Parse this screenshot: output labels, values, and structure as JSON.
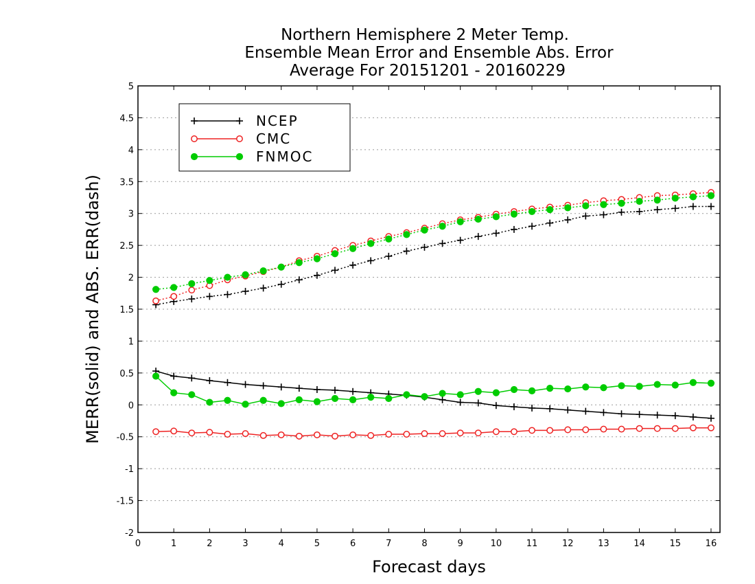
{
  "chart_data": {
    "type": "line",
    "title_lines": [
      "Northern Hemisphere 2 Meter Temp.",
      "Ensemble Mean Error and Ensemble Abs. Error",
      "Average For 20151201 - 20160229"
    ],
    "xlabel": "Forecast days",
    "ylabel": "MERR(solid) and ABS. ERR(dash)",
    "xlim": [
      0,
      16.25
    ],
    "ylim": [
      -2,
      5
    ],
    "xticks": [
      "0",
      "1",
      "2",
      "3",
      "4",
      "5",
      "6",
      "7",
      "8",
      "9",
      "10",
      "11",
      "12",
      "13",
      "14",
      "15",
      "16"
    ],
    "yticks": [
      "-2",
      "-1.5",
      "-1",
      "-0.5",
      "0",
      "0.5",
      "1",
      "1.5",
      "2",
      "2.5",
      "3",
      "3.5",
      "4",
      "4.5",
      "5"
    ],
    "grid": "horizontal dotted",
    "legend_position": "top-left",
    "x": [
      0.5,
      1,
      1.5,
      2,
      2.5,
      3,
      3.5,
      4,
      4.5,
      5,
      5.5,
      6,
      6.5,
      7,
      7.5,
      8,
      8.5,
      9,
      9.5,
      10,
      10.5,
      11,
      11.5,
      12,
      12.5,
      13,
      13.5,
      14,
      14.5,
      15,
      15.5,
      16
    ],
    "series": [
      {
        "name": "NCEP",
        "color": "#000000",
        "marker": "plus",
        "merr": [
          0.53,
          0.45,
          0.42,
          0.38,
          0.35,
          0.32,
          0.3,
          0.28,
          0.26,
          0.24,
          0.23,
          0.21,
          0.19,
          0.17,
          0.15,
          0.12,
          0.08,
          0.04,
          0.03,
          -0.01,
          -0.03,
          -0.05,
          -0.06,
          -0.08,
          -0.1,
          -0.12,
          -0.14,
          -0.15,
          -0.16,
          -0.17,
          -0.19,
          -0.21
        ],
        "abs_err": [
          1.57,
          1.62,
          1.66,
          1.7,
          1.73,
          1.78,
          1.83,
          1.89,
          1.96,
          2.03,
          2.11,
          2.19,
          2.26,
          2.33,
          2.41,
          2.47,
          2.53,
          2.58,
          2.64,
          2.69,
          2.75,
          2.8,
          2.85,
          2.9,
          2.96,
          2.98,
          3.02,
          3.03,
          3.06,
          3.08,
          3.11,
          3.11
        ]
      },
      {
        "name": "CMC",
        "color": "#ee2222",
        "marker": "open-circle",
        "merr": [
          -0.42,
          -0.41,
          -0.44,
          -0.43,
          -0.46,
          -0.45,
          -0.48,
          -0.47,
          -0.49,
          -0.47,
          -0.49,
          -0.47,
          -0.48,
          -0.46,
          -0.46,
          -0.45,
          -0.45,
          -0.44,
          -0.44,
          -0.42,
          -0.42,
          -0.4,
          -0.4,
          -0.39,
          -0.39,
          -0.38,
          -0.38,
          -0.37,
          -0.37,
          -0.37,
          -0.36,
          -0.36
        ],
        "abs_err": [
          1.63,
          1.7,
          1.8,
          1.87,
          1.96,
          2.02,
          2.09,
          2.16,
          2.26,
          2.33,
          2.42,
          2.5,
          2.57,
          2.64,
          2.7,
          2.77,
          2.84,
          2.9,
          2.94,
          2.99,
          3.03,
          3.07,
          3.1,
          3.13,
          3.17,
          3.2,
          3.22,
          3.25,
          3.28,
          3.29,
          3.31,
          3.33
        ]
      },
      {
        "name": "FNMOC",
        "color": "#00cc00",
        "marker": "filled-circle",
        "merr": [
          0.45,
          0.19,
          0.16,
          0.04,
          0.07,
          0.01,
          0.07,
          0.02,
          0.08,
          0.05,
          0.1,
          0.08,
          0.12,
          0.1,
          0.16,
          0.13,
          0.18,
          0.16,
          0.21,
          0.19,
          0.24,
          0.22,
          0.26,
          0.25,
          0.28,
          0.27,
          0.3,
          0.29,
          0.32,
          0.31,
          0.35,
          0.34
        ],
        "abs_err": [
          1.81,
          1.84,
          1.9,
          1.95,
          2.0,
          2.04,
          2.1,
          2.16,
          2.23,
          2.29,
          2.37,
          2.45,
          2.53,
          2.6,
          2.67,
          2.74,
          2.8,
          2.87,
          2.91,
          2.95,
          2.99,
          3.03,
          3.06,
          3.09,
          3.12,
          3.14,
          3.16,
          3.19,
          3.21,
          3.24,
          3.26,
          3.28
        ]
      }
    ]
  }
}
